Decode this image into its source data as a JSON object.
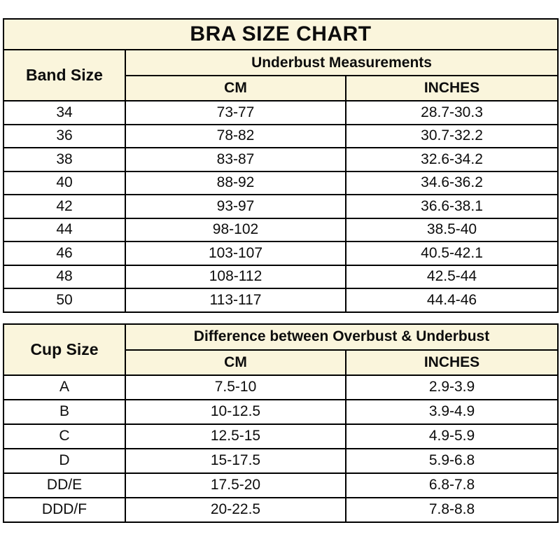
{
  "colors": {
    "header_background": "#FAF5DC",
    "border": "#000000",
    "text": "#0D0D0D",
    "page_background": "#FFFFFF"
  },
  "chart_data": [
    {
      "type": "table",
      "title": "BRA SIZE CHART",
      "row_header": "Band Size",
      "group_header": "Underbust Measurements",
      "columns": [
        "CM",
        "INCHES"
      ],
      "rows": [
        [
          "34",
          "73-77",
          "28.7-30.3"
        ],
        [
          "36",
          "78-82",
          "30.7-32.2"
        ],
        [
          "38",
          "83-87",
          "32.6-34.2"
        ],
        [
          "40",
          "88-92",
          "34.6-36.2"
        ],
        [
          "42",
          "93-97",
          "36.6-38.1"
        ],
        [
          "44",
          "98-102",
          "38.5-40"
        ],
        [
          "46",
          "103-107",
          "40.5-42.1"
        ],
        [
          "48",
          "108-112",
          "42.5-44"
        ],
        [
          "50",
          "113-117",
          "44.4-46"
        ]
      ]
    },
    {
      "type": "table",
      "title": "",
      "row_header": "Cup Size",
      "group_header": "Difference between Overbust & Underbust",
      "columns": [
        "CM",
        "INCHES"
      ],
      "rows": [
        [
          "A",
          "7.5-10",
          "2.9-3.9"
        ],
        [
          "B",
          "10-12.5",
          "3.9-4.9"
        ],
        [
          "C",
          "12.5-15",
          "4.9-5.9"
        ],
        [
          "D",
          "15-17.5",
          "5.9-6.8"
        ],
        [
          "DD/E",
          "17.5-20",
          "6.8-7.8"
        ],
        [
          "DDD/F",
          "20-22.5",
          "7.8-8.8"
        ]
      ]
    }
  ]
}
